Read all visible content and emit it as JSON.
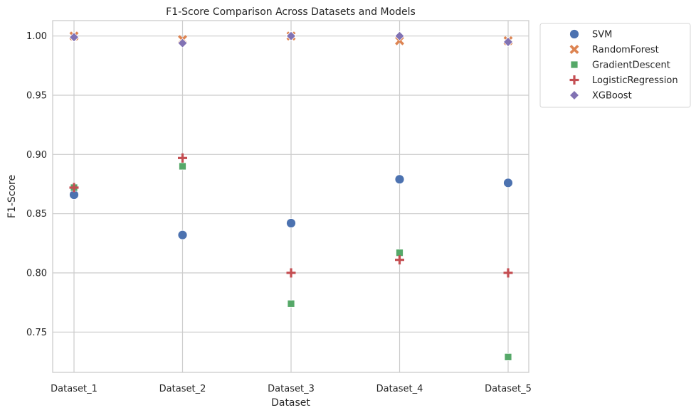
{
  "chart_data": {
    "type": "scatter",
    "title": "F1-Score Comparison Across Datasets and Models",
    "xlabel": "Dataset",
    "ylabel": "F1-Score",
    "categories": [
      "Dataset_1",
      "Dataset_2",
      "Dataset_3",
      "Dataset_4",
      "Dataset_5"
    ],
    "ylim": [
      0.716,
      1.013
    ],
    "yticks": [
      "0.75",
      "0.80",
      "0.85",
      "0.90",
      "0.95",
      "1.00"
    ],
    "grid": true,
    "legend_position": "outside-top-right",
    "series": [
      {
        "name": "SVM",
        "marker": "circle",
        "color": "#4c72b0",
        "values": [
          0.866,
          0.832,
          0.842,
          0.879,
          0.876
        ]
      },
      {
        "name": "RandomForest",
        "marker": "x",
        "color": "#dd8452",
        "values": [
          1.0,
          0.997,
          1.0,
          0.996,
          0.996
        ]
      },
      {
        "name": "GradientDescent",
        "marker": "square",
        "color": "#55a868",
        "values": [
          0.872,
          0.89,
          0.774,
          0.817,
          0.729
        ]
      },
      {
        "name": "LogisticRegression",
        "marker": "plus",
        "color": "#c44e52",
        "values": [
          0.872,
          0.897,
          0.8,
          0.811,
          0.8
        ]
      },
      {
        "name": "XGBoost",
        "marker": "diamond",
        "color": "#8172b3",
        "values": [
          0.999,
          0.994,
          1.0,
          1.0,
          0.995
        ]
      }
    ]
  }
}
